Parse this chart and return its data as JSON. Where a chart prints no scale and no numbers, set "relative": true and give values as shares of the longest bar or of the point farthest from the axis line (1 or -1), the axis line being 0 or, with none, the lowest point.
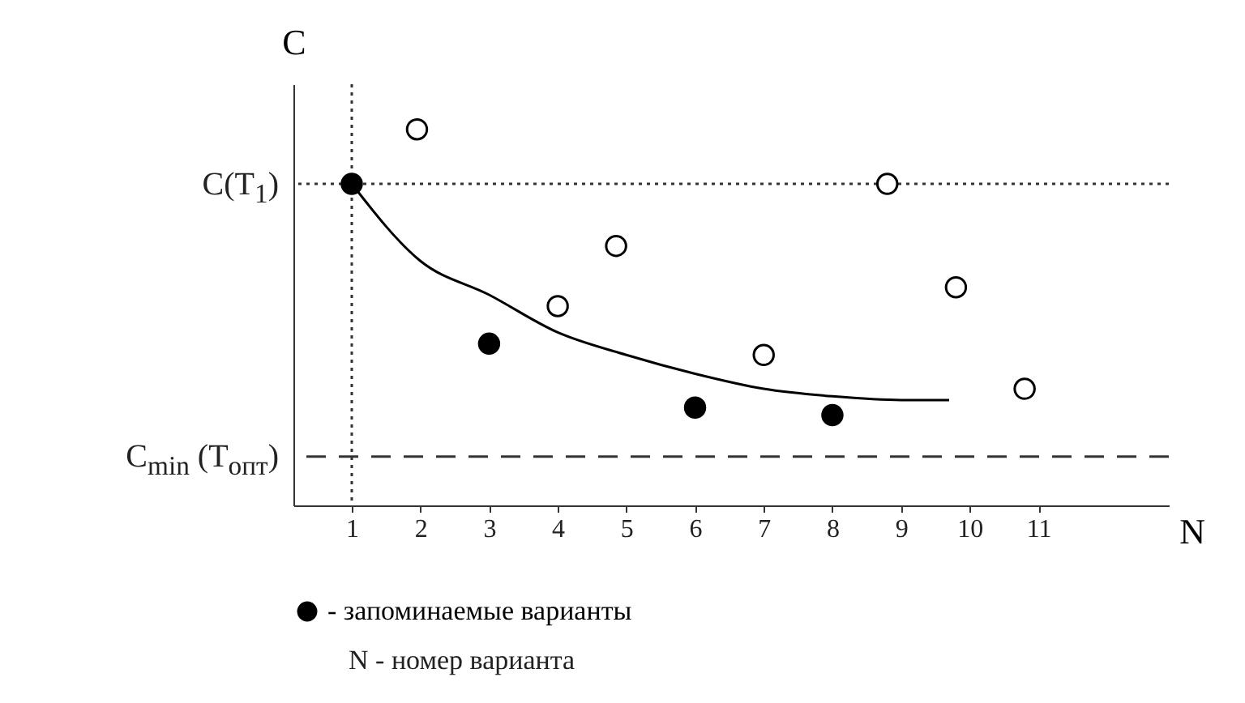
{
  "chart_data": {
    "type": "scatter",
    "xlabel": "N",
    "ylabel": "C",
    "relative": true,
    "tick_labels": "x",
    "marker": "circle",
    "legend": "bottom",
    "xlim": [
      0.15,
      12.9
    ],
    "xticks": [
      1,
      2,
      3,
      4,
      5,
      6,
      7,
      8,
      9,
      10,
      11
    ],
    "series": [
      {
        "name": "- запоминаемые варианты",
        "color": "#000000",
        "x": [
          1,
          3,
          6,
          8
        ],
        "values": [
          0.855,
          0.43,
          0.26,
          0.24
        ]
      },
      {
        "color": "#ffffff",
        "x": [
          1.95,
          4,
          4.85,
          7,
          8.8,
          9.8,
          10.8
        ],
        "values": [
          1.0,
          0.53,
          0.69,
          0.4,
          0.855,
          0.58,
          0.31
        ]
      },
      {
        "type": "line",
        "marker": "none",
        "color": "#000000",
        "x": [
          1,
          2,
          3,
          4,
          5,
          6,
          7,
          8,
          9,
          9.7
        ],
        "values": [
          0.855,
          0.65,
          0.56,
          0.46,
          0.4,
          0.35,
          0.31,
          0.29,
          0.28,
          0.28
        ]
      }
    ],
    "ref_lines": [
      {
        "axis": "y",
        "value": 0.855,
        "label": "C(T$_{1}$)",
        "line_style": "dotted"
      },
      {
        "axis": "x",
        "value": 1,
        "line_style": "dotted"
      },
      {
        "axis": "y",
        "value": 0.13,
        "label": "C$_{min}$ (T$_{опт}$)",
        "line_style": "dashed"
      }
    ],
    "annotations": [
      "N - номер варианта"
    ]
  }
}
